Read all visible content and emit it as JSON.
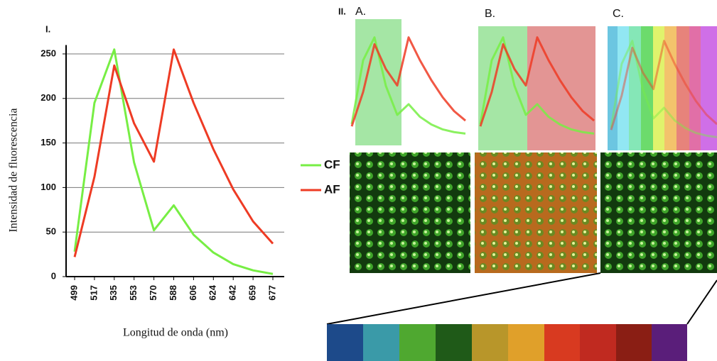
{
  "figure": {
    "panel_I": "I.",
    "panel_II": "II.",
    "subpanels": [
      "A.",
      "B.",
      "C."
    ]
  },
  "chart_data": {
    "type": "line",
    "y_label": "Intensidad de fluorescencia",
    "x_label": "Longitud de onda (nm)",
    "categories": [
      "499",
      "517",
      "535",
      "553",
      "570",
      "588",
      "606",
      "624",
      "642",
      "659",
      "677"
    ],
    "series": [
      {
        "name": "CF",
        "color": "#77ee44",
        "values": [
          28,
          195,
          255,
          128,
          52,
          80,
          47,
          27,
          14,
          7,
          3
        ]
      },
      {
        "name": "AF",
        "color": "#ee3b24",
        "values": [
          22,
          112,
          237,
          172,
          129,
          255,
          195,
          143,
          98,
          62,
          37
        ]
      }
    ],
    "ylim": [
      0,
      260
    ],
    "yticks": [
      0,
      50,
      100,
      150,
      200,
      250
    ],
    "grid": true
  }
}
